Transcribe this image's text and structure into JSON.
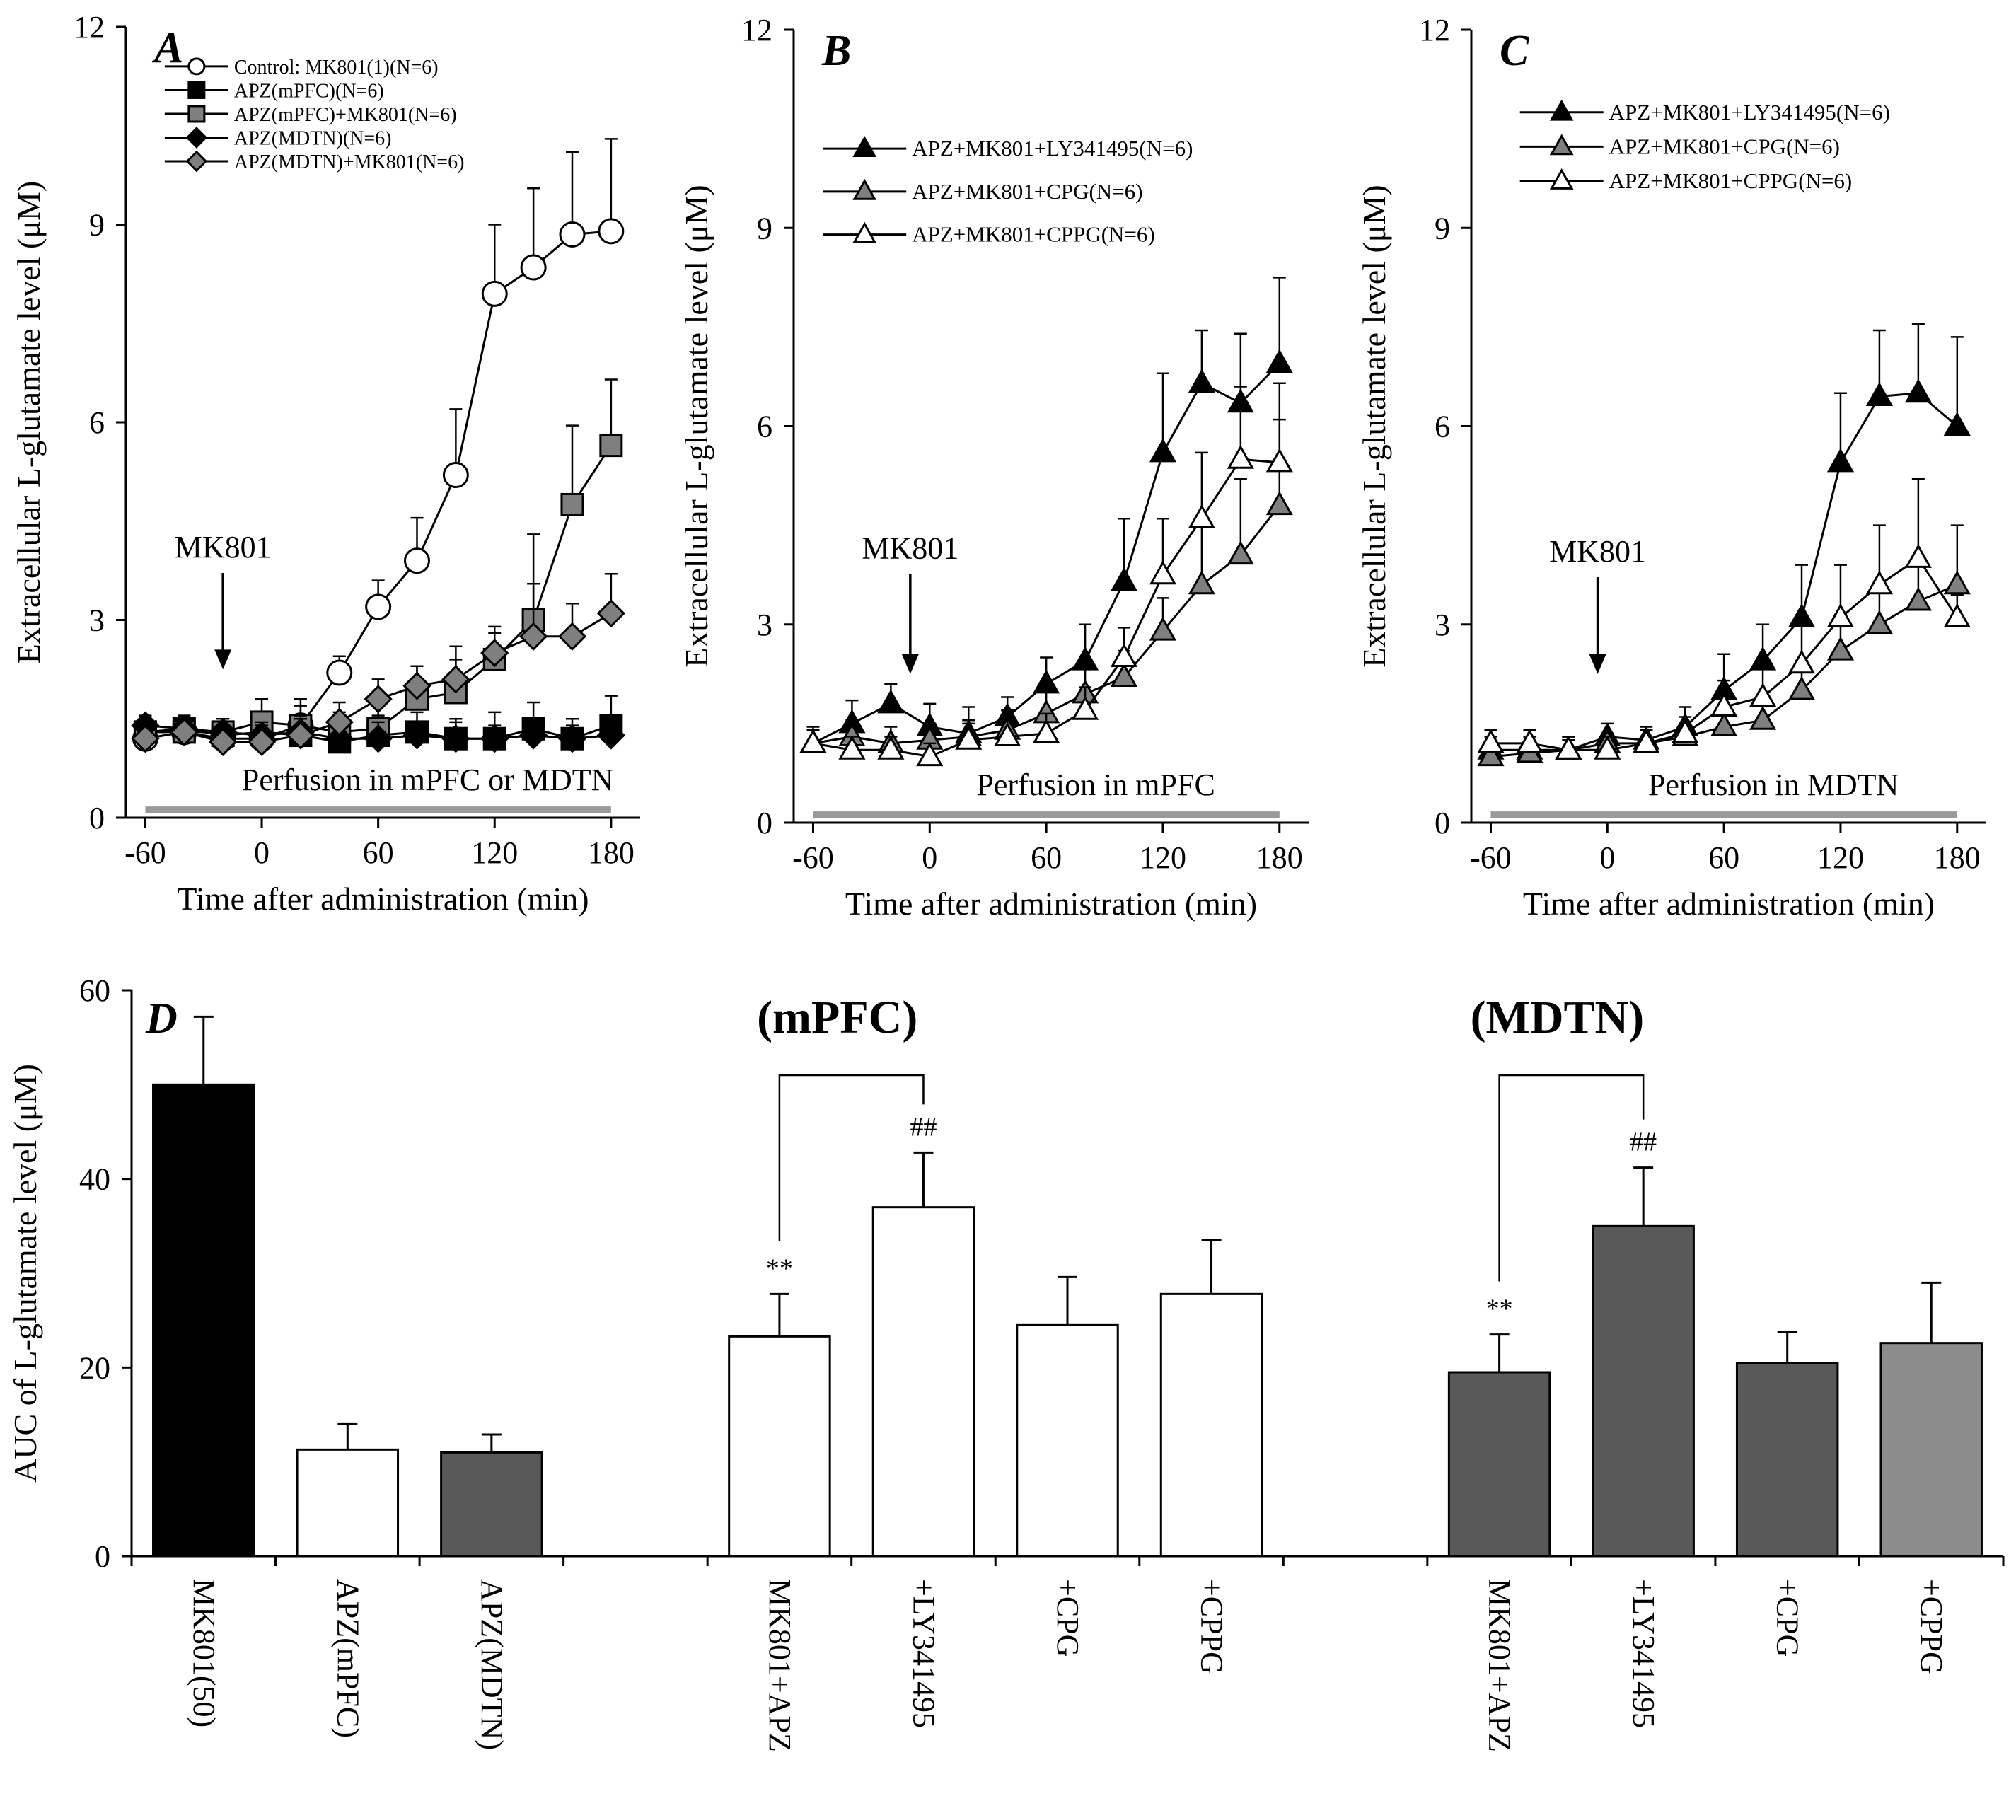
{
  "colors": {
    "black": "#000000",
    "white": "#ffffff",
    "dark_gray": "#595959",
    "mid_gray": "#7f7f7f",
    "light_gray": "#8c8c8c",
    "bar_gray": "#9a9a9a"
  },
  "line_panels": [
    {
      "letter": "A",
      "ylabel": "Extracellular L-glutamate level (μM)",
      "xlabel": "Time after administration (min)",
      "ylim": [
        0,
        12
      ],
      "xlim": [
        -70,
        195
      ],
      "yticks": [
        0,
        3,
        6,
        9,
        12
      ],
      "xticks": [
        -60,
        0,
        60,
        120,
        180
      ],
      "annotation": "MK801",
      "annotation_x": -20,
      "annotation_y_text": 3.95,
      "perfusion_label": "Perfusion in mPFC or MDTN",
      "perfusion_range": [
        -60,
        180
      ],
      "legend": {
        "x": -50,
        "y0": 11.4,
        "dy": 0.36,
        "size": "small"
      },
      "series": [
        {
          "name": "Control: MK801(1)(N=6)",
          "marker": "circle",
          "color": "#ffffff",
          "x": [
            -60,
            -40,
            -20,
            0,
            20,
            40,
            60,
            80,
            100,
            120,
            140,
            160,
            180
          ],
          "y": [
            1.2,
            1.3,
            1.2,
            1.2,
            1.4,
            2.2,
            3.2,
            3.9,
            5.2,
            7.95,
            8.35,
            8.85,
            8.9
          ],
          "err": [
            0.15,
            0.2,
            0.2,
            0.25,
            0.3,
            0.25,
            0.4,
            0.65,
            1.0,
            1.05,
            1.2,
            1.25,
            1.4
          ]
        },
        {
          "name": "APZ(mPFC)(N=6)",
          "marker": "square",
          "color": "#000000",
          "x": [
            -60,
            -40,
            -20,
            0,
            20,
            40,
            60,
            80,
            100,
            120,
            140,
            160,
            180
          ],
          "y": [
            1.3,
            1.35,
            1.25,
            1.3,
            1.25,
            1.15,
            1.25,
            1.3,
            1.2,
            1.2,
            1.35,
            1.2,
            1.4
          ],
          "err": [
            0.2,
            0.2,
            0.2,
            0.25,
            0.25,
            0.3,
            0.3,
            0.3,
            0.3,
            0.4,
            0.4,
            0.3,
            0.45
          ]
        },
        {
          "name": "APZ(mPFC)+MK801(N=6)",
          "marker": "square",
          "color": "#7f7f7f",
          "x": [
            -60,
            -40,
            -20,
            0,
            20,
            40,
            60,
            80,
            100,
            120,
            140,
            160,
            180
          ],
          "y": [
            1.3,
            1.3,
            1.3,
            1.45,
            1.4,
            1.3,
            1.35,
            1.8,
            1.9,
            2.4,
            3.0,
            4.75,
            5.65
          ],
          "err": [
            0.2,
            0.2,
            0.2,
            0.35,
            0.4,
            0.3,
            0.35,
            0.5,
            0.7,
            0.5,
            1.3,
            1.2,
            1.0
          ]
        },
        {
          "name": "APZ(MDTN)(N=6)",
          "marker": "diamond",
          "color": "#000000",
          "x": [
            -60,
            -40,
            -20,
            0,
            20,
            40,
            60,
            80,
            100,
            120,
            140,
            160,
            180
          ],
          "y": [
            1.4,
            1.35,
            1.3,
            1.25,
            1.3,
            1.2,
            1.2,
            1.25,
            1.2,
            1.2,
            1.25,
            1.2,
            1.25
          ],
          "err": [
            0.15,
            0.15,
            0.2,
            0.2,
            0.2,
            0.25,
            0.25,
            0.2,
            0.25,
            0.2,
            0.25,
            0.2,
            0.25
          ]
        },
        {
          "name": "APZ(MDTN)+MK801(N=6)",
          "marker": "diamond",
          "color": "#7f7f7f",
          "x": [
            -60,
            -40,
            -20,
            0,
            20,
            40,
            60,
            80,
            100,
            120,
            140,
            160,
            180
          ],
          "y": [
            1.2,
            1.3,
            1.15,
            1.15,
            1.25,
            1.45,
            1.8,
            2.0,
            2.1,
            2.5,
            2.75,
            2.75,
            3.1
          ],
          "err": [
            0.25,
            0.25,
            0.25,
            0.25,
            0.3,
            0.3,
            0.3,
            0.3,
            0.3,
            0.3,
            0.8,
            0.5,
            0.6
          ]
        }
      ]
    },
    {
      "letter": "B",
      "ylabel": "Extracellular L-glutamate level (μM)",
      "xlabel": "Time after administration (min)",
      "ylim": [
        0,
        12
      ],
      "xlim": [
        -70,
        195
      ],
      "yticks": [
        0,
        3,
        6,
        9,
        12
      ],
      "xticks": [
        -60,
        0,
        60,
        120,
        180
      ],
      "annotation": "MK801",
      "annotation_x": -10,
      "annotation_y_text": 4.0,
      "perfusion_label": "Perfusion in mPFC",
      "perfusion_range": [
        -60,
        180
      ],
      "legend": {
        "x": -55,
        "y0": 10.2,
        "dy": 0.65,
        "size": "big"
      },
      "series": [
        {
          "name": "APZ+MK801+LY341495(N=6)",
          "marker": "triangle",
          "color": "#000000",
          "x": [
            -60,
            -40,
            -20,
            0,
            20,
            40,
            60,
            80,
            100,
            120,
            140,
            160,
            180
          ],
          "y": [
            1.2,
            1.5,
            1.8,
            1.45,
            1.35,
            1.6,
            2.1,
            2.45,
            3.65,
            5.6,
            6.65,
            6.35,
            6.95
          ],
          "err": [
            0.25,
            0.35,
            0.3,
            0.35,
            0.4,
            0.3,
            0.4,
            0.55,
            0.95,
            1.2,
            0.8,
            1.05,
            1.3
          ]
        },
        {
          "name": "APZ+MK801+CPG(N=6)",
          "marker": "triangle",
          "color": "#7f7f7f",
          "x": [
            -60,
            -40,
            -20,
            0,
            20,
            40,
            60,
            80,
            100,
            120,
            140,
            160,
            180
          ],
          "y": [
            1.2,
            1.3,
            1.2,
            1.25,
            1.3,
            1.4,
            1.65,
            1.95,
            2.2,
            2.9,
            3.6,
            4.05,
            4.8
          ],
          "err": [
            0.2,
            0.25,
            0.25,
            0.25,
            0.25,
            0.3,
            0.35,
            0.4,
            0.4,
            0.5,
            0.95,
            1.15,
            1.3
          ]
        },
        {
          "name": "APZ+MK801+CPPG(N=6)",
          "marker": "triangle",
          "color": "#ffffff",
          "x": [
            -60,
            -40,
            -20,
            0,
            20,
            40,
            60,
            80,
            100,
            120,
            140,
            160,
            180
          ],
          "y": [
            1.2,
            1.1,
            1.1,
            1.0,
            1.25,
            1.3,
            1.35,
            1.7,
            2.5,
            3.75,
            4.6,
            5.5,
            5.45
          ],
          "err": [
            0.2,
            0.2,
            0.2,
            0.2,
            0.25,
            0.3,
            0.3,
            0.35,
            0.45,
            0.85,
            1.0,
            1.1,
            1.2
          ]
        }
      ]
    },
    {
      "letter": "C",
      "ylabel": "Extracellular L-glutamate level (μM)",
      "xlabel": "Time after administration (min)",
      "ylim": [
        0,
        12
      ],
      "xlim": [
        -70,
        195
      ],
      "yticks": [
        0,
        3,
        6,
        9,
        12
      ],
      "xticks": [
        -60,
        0,
        60,
        120,
        180
      ],
      "annotation": "MK801",
      "annotation_x": -5,
      "annotation_y_text": 3.95,
      "perfusion_label": "Perfusion in MDTN",
      "perfusion_range": [
        -60,
        180
      ],
      "legend": {
        "x": -45,
        "y0": 10.75,
        "dy": 0.52,
        "size": "big"
      },
      "series": [
        {
          "name": "APZ+MK801+LY341495(N=6)",
          "marker": "triangle",
          "color": "#000000",
          "x": [
            -60,
            -40,
            -20,
            0,
            20,
            40,
            60,
            80,
            100,
            120,
            140,
            160,
            180
          ],
          "y": [
            1.1,
            1.1,
            1.1,
            1.3,
            1.25,
            1.45,
            2.0,
            2.45,
            3.1,
            5.45,
            6.45,
            6.5,
            6.0
          ],
          "err": [
            0.2,
            0.2,
            0.2,
            0.2,
            0.2,
            0.3,
            0.55,
            0.55,
            0.8,
            1.05,
            1.0,
            1.05,
            1.35
          ]
        },
        {
          "name": "APZ+MK801+CPG(N=6)",
          "marker": "triangle",
          "color": "#7f7f7f",
          "x": [
            -60,
            -40,
            -20,
            0,
            20,
            40,
            60,
            80,
            100,
            120,
            140,
            160,
            180
          ],
          "y": [
            1.0,
            1.05,
            1.1,
            1.2,
            1.2,
            1.3,
            1.45,
            1.55,
            2.0,
            2.6,
            3.0,
            3.35,
            3.6
          ],
          "err": [
            0.15,
            0.15,
            0.15,
            0.15,
            0.2,
            0.2,
            0.3,
            0.35,
            0.45,
            0.55,
            0.65,
            0.6,
            0.9
          ]
        },
        {
          "name": "APZ+MK801+CPPG(N=6)",
          "marker": "triangle",
          "color": "#ffffff",
          "x": [
            -60,
            -40,
            -20,
            0,
            20,
            40,
            60,
            80,
            100,
            120,
            140,
            160,
            180
          ],
          "y": [
            1.2,
            1.2,
            1.1,
            1.1,
            1.2,
            1.35,
            1.75,
            1.9,
            2.4,
            3.1,
            3.6,
            4.0,
            3.1
          ],
          "err": [
            0.2,
            0.2,
            0.2,
            0.2,
            0.2,
            0.25,
            0.4,
            0.55,
            0.6,
            0.8,
            0.9,
            1.2,
            0.35
          ]
        }
      ]
    }
  ],
  "chart_data": [
    {
      "type": "line",
      "panel": "A",
      "ylabel": "Extracellular L-glutamate level (μM)",
      "xlabel": "Time after administration (min)",
      "ylim": [
        0,
        12
      ],
      "x": [
        -60,
        -40,
        -20,
        0,
        20,
        40,
        60,
        80,
        100,
        120,
        140,
        160,
        180
      ],
      "series": [
        {
          "name": "Control: MK801(1)(N=6)",
          "values": [
            1.2,
            1.3,
            1.2,
            1.2,
            1.4,
            2.2,
            3.2,
            3.9,
            5.2,
            7.95,
            8.35,
            8.85,
            8.9
          ]
        },
        {
          "name": "APZ(mPFC)(N=6)",
          "values": [
            1.3,
            1.35,
            1.25,
            1.3,
            1.25,
            1.15,
            1.25,
            1.3,
            1.2,
            1.2,
            1.35,
            1.2,
            1.4
          ]
        },
        {
          "name": "APZ(mPFC)+MK801(N=6)",
          "values": [
            1.3,
            1.3,
            1.3,
            1.45,
            1.4,
            1.3,
            1.35,
            1.8,
            1.9,
            2.4,
            3.0,
            4.75,
            5.65
          ]
        },
        {
          "name": "APZ(MDTN)(N=6)",
          "values": [
            1.4,
            1.35,
            1.3,
            1.25,
            1.3,
            1.2,
            1.2,
            1.25,
            1.2,
            1.2,
            1.25,
            1.2,
            1.25
          ]
        },
        {
          "name": "APZ(MDTN)+MK801(N=6)",
          "values": [
            1.2,
            1.3,
            1.15,
            1.15,
            1.25,
            1.45,
            1.8,
            2.0,
            2.1,
            2.5,
            2.75,
            2.75,
            3.1
          ]
        }
      ]
    },
    {
      "type": "line",
      "panel": "B",
      "ylabel": "Extracellular L-glutamate level (μM)",
      "xlabel": "Time after administration (min)",
      "ylim": [
        0,
        12
      ],
      "x": [
        -60,
        -40,
        -20,
        0,
        20,
        40,
        60,
        80,
        100,
        120,
        140,
        160,
        180
      ],
      "series": [
        {
          "name": "APZ+MK801+LY341495(N=6)",
          "values": [
            1.2,
            1.5,
            1.8,
            1.45,
            1.35,
            1.6,
            2.1,
            2.45,
            3.65,
            5.6,
            6.65,
            6.35,
            6.95
          ]
        },
        {
          "name": "APZ+MK801+CPG(N=6)",
          "values": [
            1.2,
            1.3,
            1.2,
            1.25,
            1.3,
            1.4,
            1.65,
            1.95,
            2.2,
            2.9,
            3.6,
            4.05,
            4.8
          ]
        },
        {
          "name": "APZ+MK801+CPPG(N=6)",
          "values": [
            1.2,
            1.1,
            1.1,
            1.0,
            1.25,
            1.3,
            1.35,
            1.7,
            2.5,
            3.75,
            4.6,
            5.5,
            5.45
          ]
        }
      ]
    },
    {
      "type": "line",
      "panel": "C",
      "ylabel": "Extracellular L-glutamate level (μM)",
      "xlabel": "Time after administration (min)",
      "ylim": [
        0,
        12
      ],
      "x": [
        -60,
        -40,
        -20,
        0,
        20,
        40,
        60,
        80,
        100,
        120,
        140,
        160,
        180
      ],
      "series": [
        {
          "name": "APZ+MK801+LY341495(N=6)",
          "values": [
            1.1,
            1.1,
            1.1,
            1.3,
            1.25,
            1.45,
            2.0,
            2.45,
            3.1,
            5.45,
            6.45,
            6.5,
            6.0
          ]
        },
        {
          "name": "APZ+MK801+CPG(N=6)",
          "values": [
            1.0,
            1.05,
            1.1,
            1.2,
            1.2,
            1.3,
            1.45,
            1.55,
            2.0,
            2.6,
            3.0,
            3.35,
            3.6
          ]
        },
        {
          "name": "APZ+MK801+CPPG(N=6)",
          "values": [
            1.2,
            1.2,
            1.1,
            1.1,
            1.2,
            1.35,
            1.75,
            1.9,
            2.4,
            3.1,
            3.6,
            4.0,
            3.1
          ]
        }
      ]
    },
    {
      "type": "bar",
      "panel": "D",
      "ylabel": "AUC of L-glutamate level (μM)",
      "ylim": [
        0,
        60
      ],
      "categories": [
        "MK801(50)",
        "APZ(mPFC)",
        "APZ(MDTN)",
        "MK801+APZ",
        "+LY341495",
        "+CPG",
        "+CPPG",
        "MK801+APZ",
        "+LY341495",
        "+CPG",
        "+CPPG"
      ],
      "values": [
        50,
        11.3,
        11,
        23.3,
        37,
        24.5,
        27.8,
        19.5,
        35,
        20.5,
        22.6
      ],
      "errors": [
        7.2,
        2.7,
        1.9,
        4.5,
        5.8,
        5.1,
        5.7,
        4.0,
        6.2,
        3.3,
        6.4
      ],
      "groups": [
        "(mPFC)",
        "(MDTN)"
      ]
    }
  ],
  "bar_panel": {
    "letter": "D",
    "ylabel": "AUC of L-glutamate level (μM)",
    "ylim": [
      0,
      60
    ],
    "yticks": [
      0,
      20,
      40,
      60
    ],
    "group_labels": [
      {
        "text": "(mPFC)",
        "slot": 4.5
      },
      {
        "text": "(MDTN)",
        "slot": 9.5
      }
    ],
    "bars": [
      {
        "label": "MK801(50)",
        "value": 50,
        "err": 7.2,
        "color": "#000000",
        "slot": 0
      },
      {
        "label": "APZ(mPFC)",
        "value": 11.3,
        "err": 2.7,
        "color": "#ffffff",
        "slot": 1
      },
      {
        "label": "APZ(MDTN)",
        "value": 11,
        "err": 1.9,
        "color": "#595959",
        "slot": 2
      },
      {
        "label": "MK801+APZ",
        "value": 23.3,
        "err": 4.5,
        "color": "#ffffff",
        "slot": 4,
        "sig": "**"
      },
      {
        "label": "+LY341495",
        "value": 37,
        "err": 5.8,
        "color": "#ffffff",
        "slot": 5,
        "sig": "##"
      },
      {
        "label": "+CPG",
        "value": 24.5,
        "err": 5.1,
        "color": "#ffffff",
        "slot": 6
      },
      {
        "label": "+CPPG",
        "value": 27.8,
        "err": 5.7,
        "color": "#ffffff",
        "slot": 7
      },
      {
        "label": "MK801+APZ",
        "value": 19.5,
        "err": 4.0,
        "color": "#595959",
        "slot": 9,
        "sig": "**"
      },
      {
        "label": "+LY341495",
        "value": 35,
        "err": 6.2,
        "color": "#595959",
        "slot": 10,
        "sig": "##"
      },
      {
        "label": "+CPG",
        "value": 20.5,
        "err": 3.3,
        "color": "#595959",
        "slot": 11
      },
      {
        "label": "+CPPG",
        "value": 22.6,
        "err": 6.4,
        "color": "#8c8c8c",
        "slot": 12
      }
    ],
    "brackets": [
      {
        "from": 3,
        "to": 4,
        "y": 51
      },
      {
        "from": 7,
        "to": 8,
        "y": 51
      }
    ]
  }
}
